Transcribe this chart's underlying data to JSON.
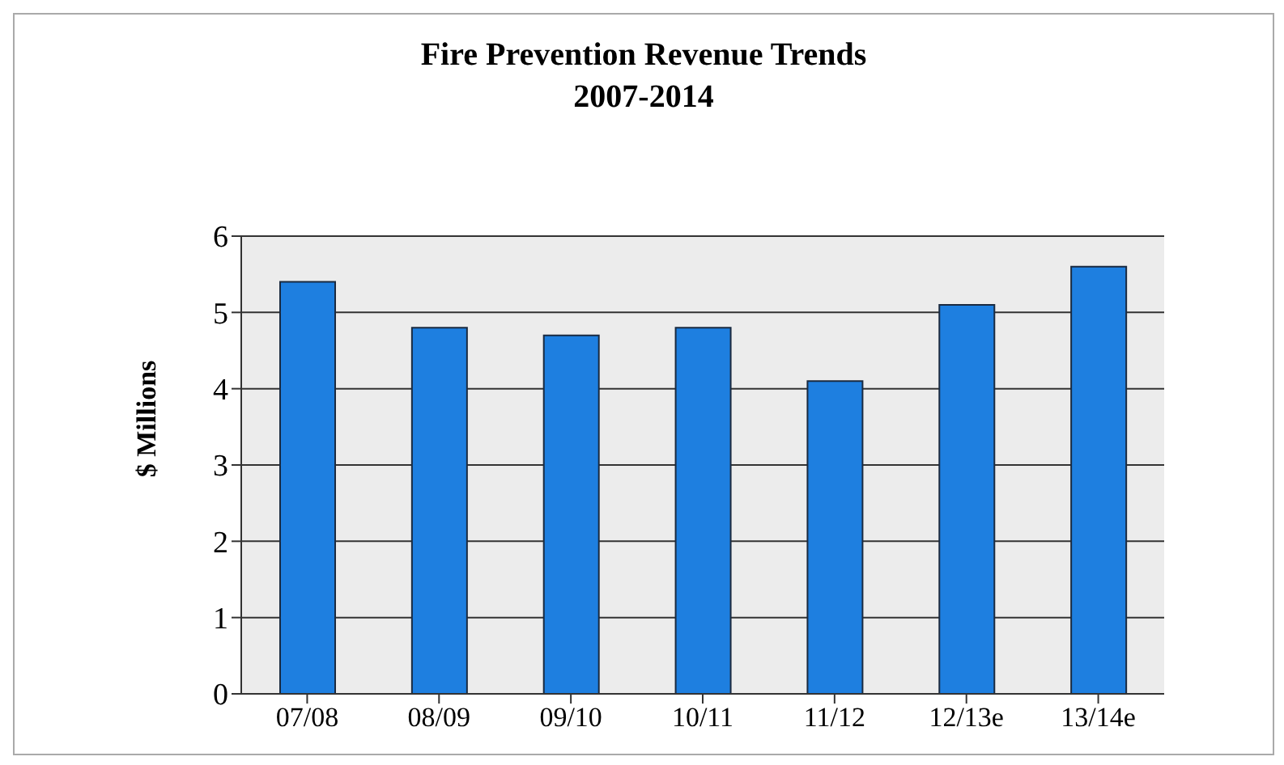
{
  "chart_data": {
    "type": "bar",
    "title": "Fire Prevention Revenue Trends\n2007-2014",
    "ylabel": "$ Millions",
    "categories": [
      "07/08",
      "08/09",
      "09/10",
      "10/11",
      "11/12",
      "12/13e",
      "13/14e"
    ],
    "values": [
      5.4,
      4.8,
      4.7,
      4.8,
      4.1,
      5.1,
      5.6
    ],
    "color": "#1e7fe0",
    "ylim": [
      0,
      6
    ],
    "yticks": [
      0,
      1,
      2,
      3,
      4,
      5,
      6
    ],
    "grid": "y"
  }
}
